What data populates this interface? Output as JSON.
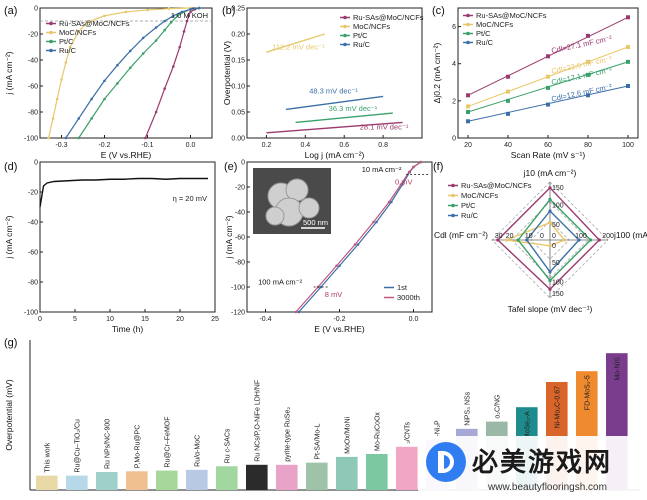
{
  "colors": {
    "ru_sas": "#9b3a6e",
    "moc": "#e8c76a",
    "ptc": "#3aa06b",
    "ruc": "#3b6fa8",
    "dash": "#999999",
    "gbar": [
      "#e9d9a6",
      "#b6d8e8",
      "#9fd0c9",
      "#f0c090",
      "#a7d89a",
      "#b7c9e5",
      "#a3d7a0",
      "#2b2b2b",
      "#eaa3c8",
      "#9ec3a8",
      "#8ec9b8",
      "#7cc8a0",
      "#f2a6c5",
      "#c5a7e0",
      "#a8a8d6",
      "#9bb8a6",
      "#1e8c8c",
      "#d9652a",
      "#f08a2e",
      "#7a3c8c"
    ]
  },
  "chart_data": [
    {
      "panel": "(a)",
      "type": "line",
      "xlabel": "E (V vs.RHE)",
      "ylabel": "j (mA cm⁻²)",
      "annotation": "1.0 M KOH",
      "xlim": [
        -0.35,
        0.05
      ],
      "ylim": [
        -100,
        0
      ],
      "xticks": [
        "-0.3",
        "-0.2",
        "-0.1",
        "0.0"
      ],
      "yticks": [
        "-100",
        "-80",
        "-60",
        "-40",
        "-20",
        "0"
      ],
      "legend": [
        "Ru-SAs@MoC/NCFs",
        "MoC/NCFs",
        "Pt/C",
        "Ru/C"
      ],
      "series": [
        {
          "name": "Ru-SAs@MoC/NCFs",
          "x": [
            -0.105,
            -0.08,
            -0.06,
            -0.04,
            -0.025,
            -0.015,
            -0.008,
            -0.004,
            0.0,
            0.01,
            0.02
          ],
          "y": [
            -100,
            -80,
            -62,
            -45,
            -30,
            -18,
            -10,
            -6,
            -3,
            -1,
            0
          ]
        },
        {
          "name": "MoC/NCFs",
          "x": [
            -0.33,
            -0.32,
            -0.31,
            -0.3,
            -0.29,
            -0.28,
            -0.26,
            -0.24,
            -0.2,
            -0.15,
            -0.1,
            -0.05,
            0.0
          ],
          "y": [
            -100,
            -85,
            -70,
            -55,
            -42,
            -30,
            -18,
            -11,
            -6,
            -3,
            -1.5,
            -0.5,
            0
          ]
        },
        {
          "name": "Pt/C",
          "x": [
            -0.26,
            -0.23,
            -0.2,
            -0.17,
            -0.14,
            -0.11,
            -0.08,
            -0.06,
            -0.045,
            -0.03,
            -0.015,
            0.0,
            0.02
          ],
          "y": [
            -100,
            -85,
            -70,
            -58,
            -46,
            -35,
            -25,
            -17,
            -11,
            -6,
            -3,
            -1,
            0
          ]
        },
        {
          "name": "Ru/C",
          "x": [
            -0.29,
            -0.26,
            -0.23,
            -0.2,
            -0.17,
            -0.14,
            -0.11,
            -0.08,
            -0.06,
            -0.04,
            -0.02,
            0.0,
            0.02
          ],
          "y": [
            -100,
            -85,
            -70,
            -56,
            -44,
            -33,
            -23,
            -15,
            -10,
            -6,
            -3,
            -1,
            0
          ]
        }
      ]
    },
    {
      "panel": "(b)",
      "type": "line",
      "xlabel": "Log j (mA cm⁻²)",
      "ylabel": "Overpotential (V)",
      "xlim": [
        0.1,
        1.0
      ],
      "ylim": [
        0,
        0.25
      ],
      "xticks": [
        "0.2",
        "0.4",
        "0.6",
        "0.8"
      ],
      "yticks": [
        "0.00",
        "0.05",
        "0.10",
        "0.15",
        "0.20",
        "0.25"
      ],
      "legend": [
        "Ru-SAs@MoC/NCFs",
        "MoC/NCFs",
        "Pt/C",
        "Ru/C"
      ],
      "series": [
        {
          "name": "Ru-SAs@MoC/NCFs",
          "x": [
            0.2,
            0.9
          ],
          "y": [
            0.01,
            0.03
          ]
        },
        {
          "name": "MoC/NCFs",
          "x": [
            0.2,
            0.5
          ],
          "y": [
            0.165,
            0.2
          ]
        },
        {
          "name": "Pt/C",
          "x": [
            0.35,
            0.85
          ],
          "y": [
            0.03,
            0.048
          ]
        },
        {
          "name": "Ru/C",
          "x": [
            0.3,
            0.8
          ],
          "y": [
            0.055,
            0.08
          ]
        }
      ],
      "labels": [
        {
          "text": "112.2 mV dec⁻¹",
          "x": 0.23,
          "y": 0.17,
          "series": "MoC/NCFs"
        },
        {
          "text": "48.3 mV dec⁻¹",
          "x": 0.42,
          "y": 0.086,
          "series": "Ru/C"
        },
        {
          "text": "36.3 mV dec⁻¹",
          "x": 0.52,
          "y": 0.052,
          "series": "Pt/C"
        },
        {
          "text": "28.1 mV dec⁻¹",
          "x": 0.68,
          "y": 0.016,
          "series": "Ru-SAs@MoC/NCFs"
        }
      ]
    },
    {
      "panel": "(c)",
      "type": "scatter",
      "xlabel": "Scan Rate (mV s⁻¹)",
      "ylabel": "Δj0.2 (mA cm⁻²)",
      "xlim": [
        15,
        105
      ],
      "ylim": [
        0,
        7
      ],
      "xticks": [
        "20",
        "40",
        "60",
        "80",
        "100"
      ],
      "yticks": [
        "0",
        "2",
        "4",
        "6"
      ],
      "legend": [
        "Ru-SAs@MoC/NCFs",
        "MoC/NCFs",
        "Pt/C",
        "Ru/C"
      ],
      "x": [
        20,
        40,
        60,
        80,
        100
      ],
      "series": [
        {
          "name": "Ru-SAs@MoC/NCFs",
          "values": [
            2.3,
            3.3,
            4.4,
            5.5,
            6.5
          ]
        },
        {
          "name": "MoC/NCFs",
          "values": [
            1.7,
            2.5,
            3.3,
            4.1,
            4.9
          ]
        },
        {
          "name": "Pt/C",
          "values": [
            1.4,
            2.0,
            2.7,
            3.4,
            4.1
          ]
        },
        {
          "name": "Ru/C",
          "values": [
            0.9,
            1.3,
            1.8,
            2.3,
            2.8
          ]
        }
      ],
      "labels": [
        {
          "text": "Cdl=27.1 mF cm⁻²",
          "series": "Ru-SAs@MoC/NCFs"
        },
        {
          "text": "Cdl=22.6 mF cm⁻²",
          "series": "MoC/NCFs"
        },
        {
          "text": "Cdl=17.1 mF cm⁻²",
          "series": "Pt/C"
        },
        {
          "text": "Cdl=12.6 mF cm⁻²",
          "series": "Ru/C"
        }
      ]
    },
    {
      "panel": "(d)",
      "type": "line",
      "xlabel": "Time (h)",
      "ylabel": "j (mA cm⁻²)",
      "annotation": "η = 20 mV",
      "xlim": [
        0,
        25
      ],
      "ylim": [
        -100,
        0
      ],
      "xticks": [
        "0",
        "5",
        "10",
        "15",
        "20",
        "25"
      ],
      "yticks": [
        "-100",
        "-80",
        "-60",
        "-40",
        "-20",
        "0"
      ],
      "series": [
        {
          "name": "",
          "x": [
            0,
            0.5,
            1,
            2,
            4,
            6,
            8,
            10,
            12,
            14,
            16,
            18,
            20,
            22,
            24
          ],
          "y": [
            -30,
            -16,
            -14,
            -13,
            -12.5,
            -12,
            -12,
            -11.5,
            -11.5,
            -11,
            -11,
            -11.5,
            -11,
            -11,
            -11
          ]
        }
      ]
    },
    {
      "panel": "(e)",
      "type": "line",
      "xlabel": "E (V vs.RHE)",
      "ylabel": "j (mA cm⁻²)",
      "xlim": [
        -0.45,
        0.05
      ],
      "ylim": [
        -120,
        0
      ],
      "xticks": [
        "-0.4",
        "-0.2",
        "0.0"
      ],
      "yticks": [
        "-120",
        "-100",
        "-80",
        "-60",
        "-40",
        "-20",
        "0"
      ],
      "legend": [
        "1st",
        "3000th"
      ],
      "inset_scale": "500 nm",
      "annotations": [
        "10 mA cm⁻²",
        "0 mV",
        "100 mA cm⁻²",
        "8 mV"
      ],
      "series": [
        {
          "name": "1st",
          "x": [
            -0.31,
            -0.25,
            -0.2,
            -0.15,
            -0.1,
            -0.06,
            -0.03,
            -0.01,
            0.0,
            0.02
          ],
          "y": [
            -120,
            -100,
            -83,
            -66,
            -48,
            -32,
            -18,
            -8,
            -4,
            0
          ]
        },
        {
          "name": "3000th",
          "x": [
            -0.318,
            -0.258,
            -0.208,
            -0.158,
            -0.108,
            -0.066,
            -0.034,
            -0.012,
            0.0,
            0.02
          ],
          "y": [
            -120,
            -100,
            -83,
            -66,
            -48,
            -32,
            -18,
            -8,
            -4,
            0
          ]
        }
      ]
    },
    {
      "panel": "(f)",
      "type": "radar",
      "axes": [
        "j10 (mA cm⁻²)",
        "j100 (mA cm⁻²)",
        "Tafel slope (mV dec⁻¹)",
        "Cdl (mF cm⁻²)"
      ],
      "tick_labels": [
        "150",
        "100",
        "50",
        "0",
        "100",
        "200",
        "0",
        "50",
        "100",
        "150",
        "0",
        "10",
        "20",
        "30"
      ],
      "legend": [
        "Ru-SAs@MoC/NCFs",
        "MoC/NCFs",
        "Pt/C",
        "Ru/C"
      ],
      "series": [
        {
          "name": "Ru-SAs@MoC/NCFs",
          "values": [
            0.9,
            0.85,
            0.85,
            0.9
          ]
        },
        {
          "name": "MoC/NCFs",
          "values": [
            0.3,
            0.25,
            0.1,
            0.75
          ]
        },
        {
          "name": "Pt/C",
          "values": [
            0.7,
            0.7,
            0.7,
            0.55
          ]
        },
        {
          "name": "Ru/C",
          "values": [
            0.5,
            0.5,
            0.55,
            0.4
          ]
        }
      ]
    },
    {
      "panel": "(g)",
      "type": "bar",
      "ylabel": "Overpotential (mV)",
      "categories": [
        "This work",
        "Ru@Cu–TiO₂/Cu",
        "Ru NPs/NC-900",
        "P,Mo-Ru@PC",
        "Ru@Cr–FeMOF",
        "Ru/α-MoC",
        "Ru c-SACs",
        "Ru NCs/P,O-NiFe LDH/NF",
        "pyrite-type RuSe₂",
        "Pt-SA/Mo-L",
        "MoOx/MoNi",
        "Mo-RuCoOx",
        "₂/CNTs",
        "-Ni₂P",
        "NiPS₃ NSs",
        "o₂C/NG",
        "He₁ₑ₁₃-MoSe₂-A",
        "Ni-Mo₂C-0.67",
        "FD-MoS₂-5",
        "Mo-NiS"
      ],
      "values": [
        20,
        20,
        25,
        26,
        27,
        28,
        33,
        35,
        35,
        38,
        46,
        50,
        60,
        70,
        85,
        95,
        115,
        150,
        165,
        190
      ]
    }
  ]
}
